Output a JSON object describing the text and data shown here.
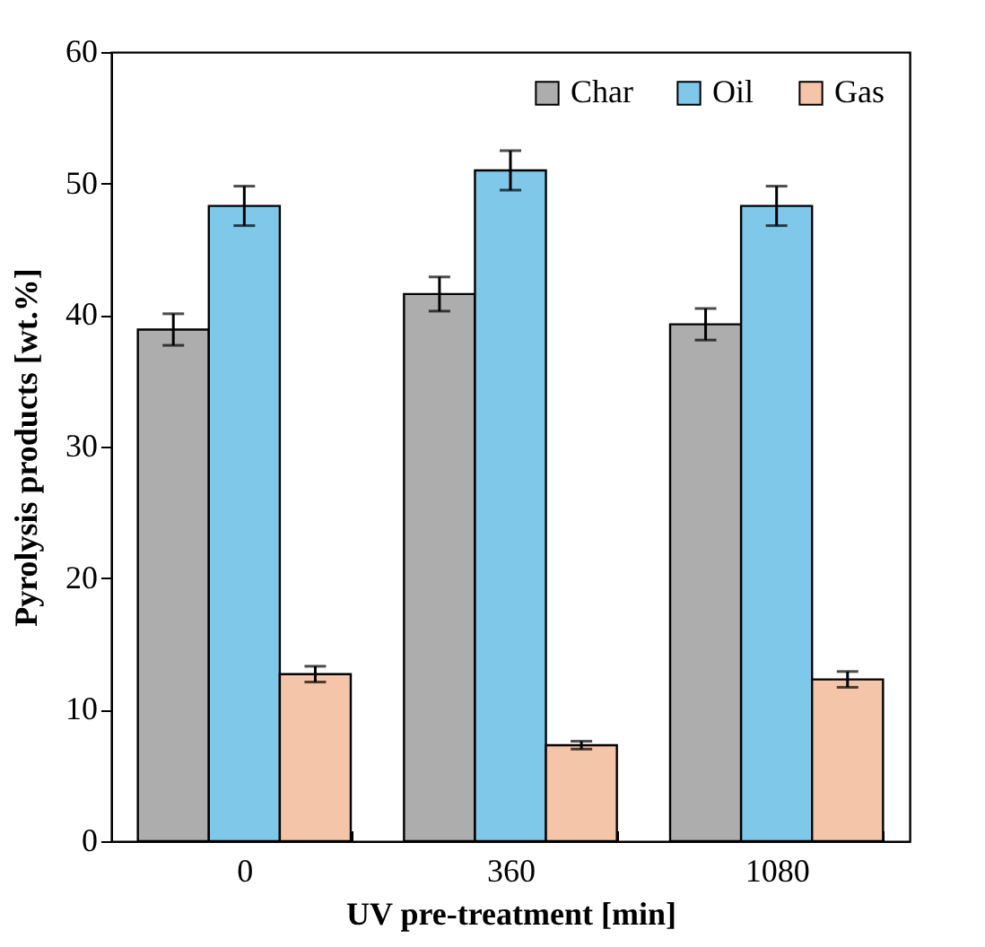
{
  "chart_data": {
    "type": "bar",
    "xlabel": "UV pre-treatment [min]",
    "ylabel": "Pyrolysis products [wt.%]",
    "categories": [
      "0",
      "360",
      "1080"
    ],
    "ylim": [
      0,
      60
    ],
    "yticks": [
      0,
      10,
      20,
      30,
      40,
      50,
      60
    ],
    "grid": false,
    "legend": "top right",
    "series": [
      {
        "name": "Char",
        "color": "#adadad",
        "values": [
          38.9,
          41.6,
          39.3
        ],
        "errors": [
          1.2,
          1.3,
          1.2
        ]
      },
      {
        "name": "Oil",
        "color": "#80c8ea",
        "values": [
          48.3,
          51.0,
          48.3
        ],
        "errors": [
          1.5,
          1.5,
          1.5
        ]
      },
      {
        "name": "Gas",
        "color": "#f5c5a9",
        "values": [
          12.7,
          7.3,
          12.3
        ],
        "errors": [
          0.6,
          0.3,
          0.6
        ]
      }
    ]
  }
}
